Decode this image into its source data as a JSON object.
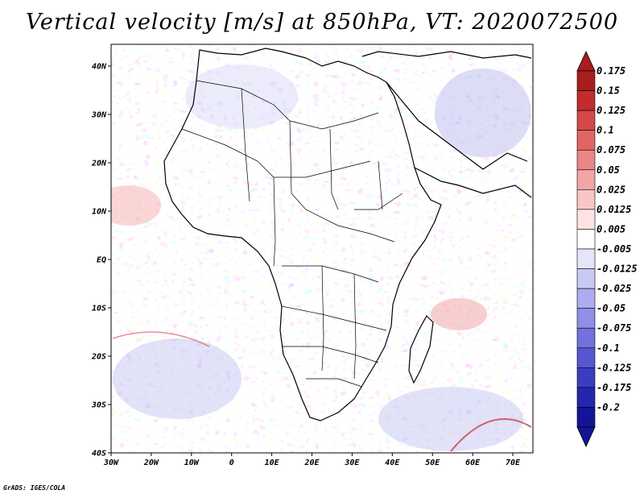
{
  "title": "Vertical velocity [m/s] at 850hPa, VT: 2020072500",
  "credit": "GrADS: IGES/COLA",
  "map": {
    "lat_labels": [
      "40N",
      "30N",
      "20N",
      "10N",
      "EQ",
      "10S",
      "20S",
      "30S",
      "40S"
    ],
    "lat_values": [
      40,
      30,
      20,
      10,
      0,
      -10,
      -20,
      -30,
      -40
    ],
    "lon_labels": [
      "30W",
      "20W",
      "10W",
      "0",
      "10E",
      "20E",
      "30E",
      "40E",
      "50E",
      "60E",
      "70E"
    ],
    "lon_values": [
      -30,
      -20,
      -10,
      0,
      10,
      20,
      30,
      40,
      50,
      60,
      70
    ],
    "lat_range": [
      -40,
      44.5
    ],
    "lon_range": [
      -30,
      75
    ]
  },
  "colorbar": {
    "labels": [
      "0.175",
      "0.15",
      "0.125",
      "0.1",
      "0.075",
      "0.05",
      "0.025",
      "0.0125",
      "0.005",
      "-0.005",
      "-0.0125",
      "-0.025",
      "-0.05",
      "-0.075",
      "-0.1",
      "-0.125",
      "-0.175",
      "-0.2"
    ],
    "colors": [
      "#a81d1d",
      "#c22c2c",
      "#d54848",
      "#e26565",
      "#eb8686",
      "#f3a5a5",
      "#f9c6c6",
      "#fde3e3",
      "#ffffff",
      "#e4e4fb",
      "#c9c9f5",
      "#acacee",
      "#8f8fe6",
      "#7272dc",
      "#5656d0",
      "#3c3cc2",
      "#2525b0",
      "#141499"
    ]
  }
}
